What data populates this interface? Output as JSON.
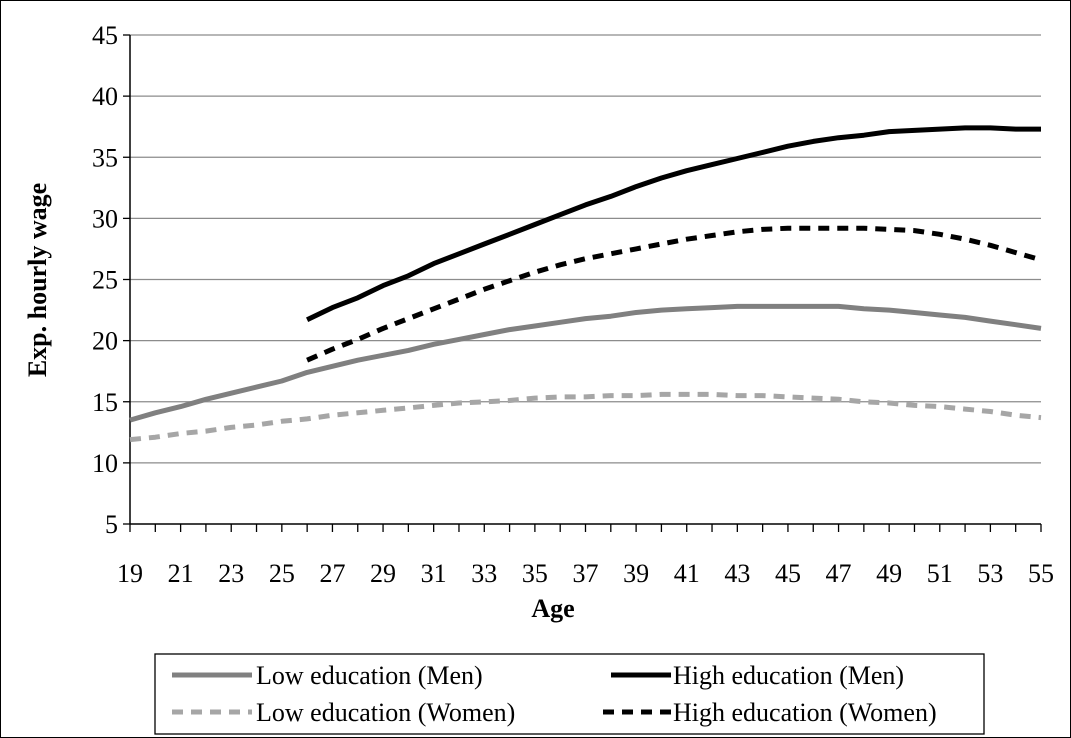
{
  "chart_data": {
    "type": "line",
    "title": "",
    "xlabel": "Age",
    "ylabel": "Exp. hourly wage",
    "xlim": [
      19,
      55
    ],
    "ylim": [
      5,
      45
    ],
    "x_ticks": [
      19,
      21,
      23,
      25,
      27,
      29,
      31,
      33,
      35,
      37,
      39,
      41,
      43,
      45,
      47,
      49,
      51,
      53,
      55
    ],
    "y_ticks": [
      5,
      10,
      15,
      20,
      25,
      30,
      35,
      40,
      45
    ],
    "grid": "horizontal",
    "legend_position": "bottom",
    "series": [
      {
        "name": "Low education (Men)",
        "color": "#808080",
        "style": "solid",
        "x": [
          19,
          20,
          21,
          22,
          23,
          24,
          25,
          26,
          27,
          28,
          29,
          30,
          31,
          32,
          33,
          34,
          35,
          36,
          37,
          38,
          39,
          40,
          41,
          42,
          43,
          44,
          45,
          46,
          47,
          48,
          49,
          50,
          51,
          52,
          53,
          54,
          55
        ],
        "values": [
          13.5,
          14.1,
          14.6,
          15.2,
          15.7,
          16.2,
          16.7,
          17.4,
          17.9,
          18.4,
          18.8,
          19.2,
          19.7,
          20.1,
          20.5,
          20.9,
          21.2,
          21.5,
          21.8,
          22.0,
          22.3,
          22.5,
          22.6,
          22.7,
          22.8,
          22.8,
          22.8,
          22.8,
          22.8,
          22.6,
          22.5,
          22.3,
          22.1,
          21.9,
          21.6,
          21.3,
          21.0
        ]
      },
      {
        "name": "High education (Men)",
        "color": "#000000",
        "style": "solid",
        "x": [
          26,
          27,
          28,
          29,
          30,
          31,
          32,
          33,
          34,
          35,
          36,
          37,
          38,
          39,
          40,
          41,
          42,
          43,
          44,
          45,
          46,
          47,
          48,
          49,
          50,
          51,
          52,
          53,
          54,
          55
        ],
        "values": [
          21.7,
          22.7,
          23.5,
          24.5,
          25.3,
          26.3,
          27.1,
          27.9,
          28.7,
          29.5,
          30.3,
          31.1,
          31.8,
          32.6,
          33.3,
          33.9,
          34.4,
          34.9,
          35.4,
          35.9,
          36.3,
          36.6,
          36.8,
          37.1,
          37.2,
          37.3,
          37.4,
          37.4,
          37.3,
          37.3
        ]
      },
      {
        "name": "Low education (Women)",
        "color": "#a6a6a6",
        "style": "dashed",
        "x": [
          19,
          20,
          21,
          22,
          23,
          24,
          25,
          26,
          27,
          28,
          29,
          30,
          31,
          32,
          33,
          34,
          35,
          36,
          37,
          38,
          39,
          40,
          41,
          42,
          43,
          44,
          45,
          46,
          47,
          48,
          49,
          50,
          51,
          52,
          53,
          54,
          55
        ],
        "values": [
          11.9,
          12.1,
          12.4,
          12.6,
          12.9,
          13.1,
          13.4,
          13.6,
          13.9,
          14.1,
          14.3,
          14.5,
          14.7,
          14.9,
          15.0,
          15.1,
          15.3,
          15.4,
          15.4,
          15.5,
          15.5,
          15.6,
          15.6,
          15.6,
          15.5,
          15.5,
          15.4,
          15.3,
          15.2,
          15.0,
          14.9,
          14.7,
          14.6,
          14.4,
          14.2,
          13.9,
          13.7
        ]
      },
      {
        "name": "High education (Women)",
        "color": "#000000",
        "style": "dashed",
        "x": [
          26,
          27,
          28,
          29,
          30,
          31,
          32,
          33,
          34,
          35,
          36,
          37,
          38,
          39,
          40,
          41,
          42,
          43,
          44,
          45,
          46,
          47,
          48,
          49,
          50,
          51,
          52,
          53,
          54,
          55
        ],
        "values": [
          18.4,
          19.3,
          20.1,
          21.0,
          21.8,
          22.6,
          23.4,
          24.2,
          24.9,
          25.6,
          26.2,
          26.7,
          27.1,
          27.5,
          27.9,
          28.3,
          28.6,
          28.9,
          29.1,
          29.2,
          29.2,
          29.2,
          29.2,
          29.1,
          29.0,
          28.7,
          28.3,
          27.8,
          27.2,
          26.6
        ]
      }
    ]
  }
}
